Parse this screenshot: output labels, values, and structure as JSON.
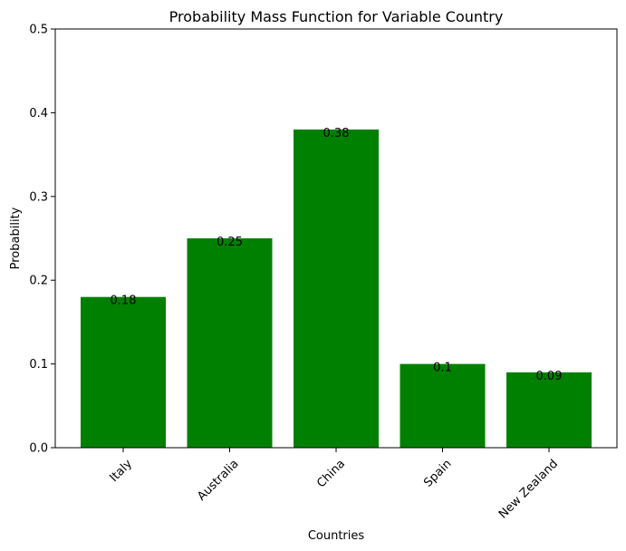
{
  "chart_data": {
    "type": "bar",
    "title": "Probability Mass Function for Variable Country",
    "xlabel": "Countries",
    "ylabel": "Probability",
    "categories": [
      "Italy",
      "Australia",
      "China",
      "Spain",
      "New Zealand"
    ],
    "values": [
      0.18,
      0.25,
      0.38,
      0.1,
      0.09
    ],
    "value_labels": [
      "0.18",
      "0.25",
      "0.38",
      "0.1",
      "0.09"
    ],
    "ylim": [
      0,
      0.5
    ],
    "yticks": [
      {
        "value": 0.0,
        "label": "0.0"
      },
      {
        "value": 0.1,
        "label": "0.1"
      },
      {
        "value": 0.2,
        "label": "0.2"
      },
      {
        "value": 0.3,
        "label": "0.3"
      },
      {
        "value": 0.4,
        "label": "0.4"
      },
      {
        "value": 0.5,
        "label": "0.5"
      }
    ],
    "bar_color": "#008000",
    "grid": false,
    "legend": "none"
  }
}
